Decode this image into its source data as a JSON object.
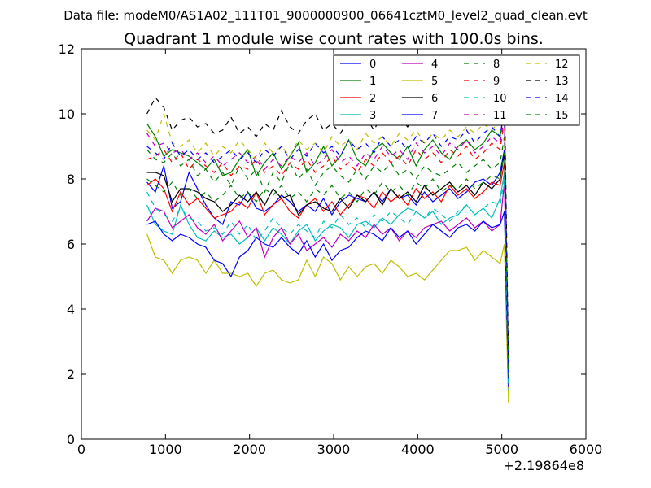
{
  "header": {
    "data_file": "Data file: modeM0/AS1A02_111T01_9000000900_06641cztM0_level2_quad_clean.evt"
  },
  "chart_data": {
    "type": "line",
    "title": "Quadrant 1 module wise count rates with 100.0s bins.",
    "xlabel": "",
    "ylabel": "",
    "x_offset_label": "+2.19864e8",
    "xlim": [
      0,
      6000
    ],
    "ylim": [
      0,
      12
    ],
    "x_ticks": [
      0,
      1000,
      2000,
      3000,
      4000,
      5000,
      6000
    ],
    "y_ticks": [
      0,
      2,
      4,
      6,
      8,
      10,
      12
    ],
    "x_tick_labels": [
      "0",
      "1000",
      "2000",
      "3000",
      "4000",
      "5000",
      "6000"
    ],
    "y_tick_labels": [
      "0",
      "2",
      "4",
      "6",
      "8",
      "10",
      "12"
    ],
    "grid": false,
    "legend_position": "top-right",
    "x": [
      780,
      880,
      980,
      1080,
      1180,
      1280,
      1380,
      1480,
      1580,
      1680,
      1780,
      1880,
      1980,
      2080,
      2180,
      2280,
      2380,
      2480,
      2580,
      2680,
      2780,
      2880,
      2980,
      3080,
      3180,
      3280,
      3380,
      3480,
      3580,
      3680,
      3780,
      3880,
      3980,
      4080,
      4180,
      4280,
      4380,
      4480,
      4580,
      4680,
      4780,
      4880,
      4980,
      5030,
      5080
    ],
    "series": [
      {
        "name": "0",
        "color": "#0000ff",
        "style": "solid",
        "values": [
          7.9,
          7.6,
          8.4,
          7.1,
          7.3,
          8.2,
          7.7,
          7.2,
          6.8,
          6.6,
          7.3,
          7.2,
          7.6,
          7.1,
          7.0,
          7.2,
          7.5,
          7.3,
          7.0,
          7.2,
          7.0,
          7.4,
          6.9,
          7.3,
          7.5,
          7.4,
          7.3,
          7.6,
          7.3,
          7.7,
          7.4,
          7.5,
          7.2,
          7.6,
          7.3,
          7.5,
          7.7,
          7.4,
          7.6,
          7.9,
          8.0,
          7.8,
          8.2,
          8.9,
          1.8
        ]
      },
      {
        "name": "1",
        "color": "#008000",
        "style": "solid",
        "values": [
          9.7,
          9.3,
          8.7,
          8.9,
          8.8,
          8.7,
          8.5,
          8.3,
          8.6,
          8.1,
          8.2,
          8.6,
          8.9,
          8.1,
          8.5,
          8.8,
          8.3,
          8.7,
          9.1,
          8.2,
          8.5,
          9.0,
          8.4,
          8.7,
          9.2,
          8.6,
          8.4,
          8.9,
          9.1,
          8.8,
          8.6,
          9.0,
          8.4,
          8.9,
          9.2,
          8.8,
          8.6,
          9.0,
          9.2,
          8.9,
          9.1,
          9.5,
          9.3,
          10.1,
          1.9
        ]
      },
      {
        "name": "2",
        "color": "#ff0000",
        "style": "solid",
        "values": [
          7.8,
          8.0,
          7.7,
          7.0,
          7.6,
          7.2,
          7.4,
          7.1,
          6.8,
          6.9,
          7.0,
          7.3,
          7.1,
          7.6,
          6.9,
          7.2,
          7.4,
          7.0,
          6.8,
          7.2,
          7.4,
          7.0,
          7.3,
          6.9,
          7.2,
          7.5,
          7.4,
          7.1,
          7.6,
          7.3,
          7.5,
          7.2,
          7.7,
          7.4,
          7.6,
          7.3,
          7.8,
          7.5,
          7.7,
          7.4,
          7.6,
          7.9,
          7.8,
          8.5,
          1.5
        ]
      },
      {
        "name": "3",
        "color": "#00bfbf",
        "style": "solid",
        "values": [
          7.2,
          6.6,
          6.4,
          6.3,
          7.2,
          6.6,
          6.2,
          6.1,
          6.4,
          6.2,
          6.3,
          6.0,
          6.2,
          6.5,
          6.1,
          6.5,
          6.3,
          6.0,
          6.4,
          6.6,
          6.1,
          6.4,
          6.6,
          6.5,
          6.2,
          6.6,
          6.7,
          6.5,
          6.8,
          6.6,
          6.9,
          7.1,
          7.0,
          6.8,
          7.0,
          6.6,
          6.8,
          6.9,
          7.2,
          6.9,
          7.1,
          6.8,
          7.4,
          8.2,
          1.6
        ]
      },
      {
        "name": "4",
        "color": "#bf00bf",
        "style": "solid",
        "values": [
          6.7,
          7.1,
          7.0,
          6.5,
          6.7,
          6.9,
          6.5,
          6.3,
          6.6,
          6.1,
          6.4,
          6.7,
          6.2,
          6.5,
          5.6,
          6.2,
          6.5,
          6.0,
          6.3,
          5.8,
          6.0,
          6.2,
          5.9,
          6.3,
          6.1,
          6.4,
          6.2,
          6.6,
          6.3,
          6.5,
          6.1,
          6.4,
          6.2,
          6.5,
          6.6,
          6.7,
          6.4,
          6.6,
          6.8,
          6.5,
          6.7,
          6.4,
          6.6,
          7.9,
          1.7
        ]
      },
      {
        "name": "5",
        "color": "#bfbf00",
        "style": "solid",
        "values": [
          6.3,
          5.6,
          5.5,
          5.1,
          5.5,
          5.6,
          5.5,
          5.1,
          5.5,
          5.1,
          5.1,
          5.0,
          5.1,
          4.7,
          5.1,
          5.2,
          4.9,
          4.8,
          4.9,
          5.5,
          5.0,
          5.6,
          5.4,
          4.9,
          5.3,
          5.0,
          5.3,
          5.4,
          5.1,
          5.5,
          5.3,
          5.0,
          5.1,
          4.9,
          5.2,
          5.5,
          5.8,
          5.8,
          5.9,
          5.5,
          5.8,
          5.6,
          5.4,
          6.0,
          1.1
        ]
      },
      {
        "name": "6",
        "color": "#000000",
        "style": "solid",
        "values": [
          8.2,
          8.2,
          8.1,
          7.3,
          7.7,
          7.7,
          7.6,
          7.4,
          7.3,
          7.0,
          7.2,
          7.5,
          7.3,
          7.6,
          7.2,
          7.7,
          7.4,
          7.5,
          6.9,
          7.2,
          7.3,
          7.1,
          7.0,
          7.4,
          7.1,
          7.5,
          7.3,
          7.6,
          7.2,
          7.7,
          7.4,
          7.6,
          7.3,
          7.8,
          7.5,
          7.7,
          7.9,
          7.6,
          7.8,
          7.5,
          7.9,
          7.7,
          8.0,
          8.8,
          1.8
        ]
      },
      {
        "name": "7",
        "color": "#0000ff",
        "style": "solid",
        "values": [
          6.6,
          6.7,
          6.3,
          6.1,
          6.3,
          6.2,
          6.0,
          5.9,
          5.5,
          5.4,
          5.0,
          5.6,
          5.8,
          6.2,
          6.0,
          5.9,
          6.2,
          5.9,
          5.7,
          6.1,
          5.6,
          6.0,
          5.5,
          5.8,
          5.9,
          6.2,
          6.4,
          6.3,
          6.1,
          6.5,
          6.2,
          6.4,
          6.0,
          6.3,
          6.6,
          6.4,
          6.2,
          6.5,
          6.6,
          6.4,
          6.7,
          6.5,
          6.6,
          7.0,
          1.6
        ]
      },
      {
        "name": "8",
        "color": "#008000",
        "style": "dashed",
        "values": [
          8.9,
          8.6,
          8.5,
          8.8,
          8.4,
          8.6,
          8.1,
          8.3,
          7.9,
          8.2,
          7.8,
          8.4,
          8.0,
          8.3,
          7.6,
          8.2,
          7.9,
          8.5,
          8.0,
          8.3,
          7.8,
          8.2,
          8.4,
          8.1,
          7.9,
          8.3,
          8.0,
          8.4,
          8.2,
          8.5,
          8.1,
          8.3,
          8.0,
          8.4,
          8.2,
          8.1,
          8.3,
          8.5,
          8.2,
          8.4,
          8.6,
          8.3,
          8.5,
          9.3,
          2.0
        ]
      },
      {
        "name": "9",
        "color": "#ff0000",
        "style": "dashed",
        "values": [
          8.6,
          8.7,
          8.9,
          8.5,
          8.8,
          8.3,
          8.6,
          8.4,
          8.2,
          8.5,
          8.1,
          8.4,
          8.3,
          8.6,
          8.2,
          8.4,
          8.1,
          8.5,
          8.3,
          8.6,
          8.2,
          8.4,
          8.7,
          8.3,
          8.5,
          8.2,
          8.6,
          8.4,
          8.8,
          8.5,
          8.7,
          8.4,
          8.9,
          8.6,
          8.8,
          8.5,
          8.9,
          8.7,
          9.0,
          8.6,
          8.8,
          9.1,
          8.9,
          9.8,
          2.0
        ]
      },
      {
        "name": "10",
        "color": "#00bfbf",
        "style": "dashed",
        "values": [
          7.6,
          7.1,
          6.9,
          6.7,
          7.1,
          6.8,
          6.7,
          6.4,
          6.5,
          6.3,
          6.7,
          6.3,
          6.6,
          6.1,
          6.4,
          6.8,
          6.5,
          6.3,
          6.6,
          6.4,
          6.2,
          6.7,
          6.5,
          6.9,
          6.6,
          6.8,
          6.5,
          6.9,
          6.7,
          7.0,
          6.8,
          6.6,
          7.0,
          6.8,
          7.1,
          6.9,
          6.7,
          7.0,
          7.2,
          6.9,
          7.1,
          7.3,
          7.2,
          8.0,
          1.5
        ]
      },
      {
        "name": "11",
        "color": "#bf00bf",
        "style": "dashed",
        "values": [
          9.4,
          9.0,
          9.1,
          8.8,
          8.9,
          8.6,
          8.8,
          8.5,
          8.7,
          8.4,
          8.6,
          8.8,
          8.5,
          8.7,
          8.3,
          8.6,
          8.4,
          8.7,
          8.5,
          8.8,
          8.4,
          8.6,
          8.9,
          8.5,
          8.7,
          8.4,
          8.8,
          8.6,
          9.0,
          8.7,
          8.9,
          8.6,
          9.1,
          8.8,
          9.0,
          8.7,
          9.1,
          8.9,
          9.2,
          8.8,
          9.0,
          9.3,
          9.1,
          9.9,
          2.1
        ]
      },
      {
        "name": "12",
        "color": "#bfbf00",
        "style": "dashed",
        "values": [
          9.5,
          9.2,
          10.0,
          9.1,
          9.0,
          9.2,
          8.8,
          9.1,
          8.7,
          9.0,
          8.8,
          9.2,
          8.9,
          8.6,
          9.1,
          8.8,
          9.0,
          8.7,
          9.2,
          8.9,
          9.1,
          8.8,
          9.3,
          9.0,
          9.2,
          8.9,
          9.4,
          9.1,
          9.3,
          9.0,
          9.4,
          9.2,
          9.5,
          9.1,
          9.4,
          9.2,
          9.5,
          9.3,
          9.6,
          9.4,
          9.7,
          9.5,
          9.8,
          10.6,
          2.2
        ]
      },
      {
        "name": "13",
        "color": "#000000",
        "style": "dashed",
        "values": [
          10.0,
          10.5,
          10.2,
          9.5,
          9.8,
          9.9,
          9.6,
          9.7,
          9.4,
          9.5,
          9.9,
          9.4,
          9.6,
          9.3,
          9.7,
          9.5,
          10.1,
          9.6,
          9.4,
          9.8,
          10.0,
          9.5,
          9.7,
          9.4,
          9.8,
          9.6,
          9.9,
          9.5,
          10.0,
          9.7,
          9.9,
          9.6,
          10.0,
          9.8,
          10.1,
          9.7,
          10.0,
          9.9,
          10.2,
          9.8,
          10.1,
          10.3,
          10.0,
          10.9,
          2.3
        ]
      },
      {
        "name": "14",
        "color": "#0000ff",
        "style": "dashed",
        "values": [
          9.0,
          8.8,
          8.6,
          9.1,
          8.7,
          8.9,
          8.6,
          8.8,
          8.5,
          8.7,
          8.9,
          8.6,
          8.8,
          8.5,
          8.9,
          8.7,
          9.0,
          8.6,
          8.9,
          8.7,
          9.1,
          8.8,
          9.0,
          8.7,
          9.2,
          8.9,
          9.1,
          8.8,
          9.3,
          9.0,
          9.2,
          8.9,
          9.3,
          9.1,
          9.4,
          9.0,
          9.3,
          9.2,
          9.5,
          9.1,
          9.4,
          9.6,
          9.3,
          10.2,
          2.0
        ]
      },
      {
        "name": "15",
        "color": "#008000",
        "style": "dashed",
        "values": [
          8.0,
          7.8,
          7.6,
          7.9,
          7.5,
          7.7,
          7.4,
          7.6,
          7.3,
          7.5,
          7.8,
          7.4,
          7.6,
          7.3,
          7.7,
          7.5,
          7.8,
          7.4,
          7.6,
          7.3,
          7.7,
          7.5,
          7.8,
          7.4,
          7.6,
          7.3,
          7.7,
          7.5,
          7.9,
          7.6,
          7.8,
          7.5,
          7.9,
          7.7,
          8.0,
          7.6,
          7.8,
          7.7,
          8.0,
          7.7,
          7.9,
          8.1,
          8.0,
          8.8,
          1.9
        ]
      }
    ]
  }
}
